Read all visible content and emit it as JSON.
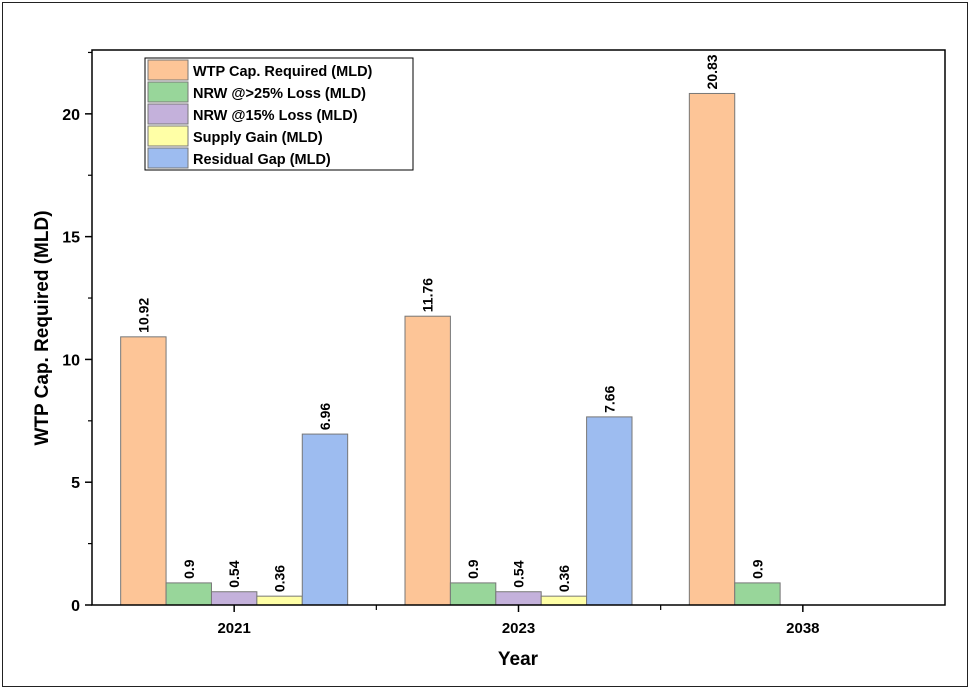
{
  "chart_data": {
    "type": "bar",
    "title": "",
    "xlabel": "Year",
    "ylabel": "WTP Cap. Required (MLD)",
    "categories": [
      "2021",
      "2023",
      "2038"
    ],
    "ylim": [
      0,
      22.6
    ],
    "yticks": [
      0,
      5,
      10,
      15,
      20
    ],
    "grid": false,
    "legend_position": "top-left",
    "series": [
      {
        "name": "WTP Cap. Required (MLD)",
        "color": "#FDC597",
        "values": [
          10.92,
          11.76,
          20.83
        ],
        "labels": [
          "10.92",
          "11.76",
          "20.83"
        ]
      },
      {
        "name": "NRW @>25% Loss (MLD)",
        "color": "#98D69A",
        "values": [
          0.9,
          0.9,
          0.9
        ],
        "labels": [
          "0.9",
          "0.9",
          "0.9"
        ]
      },
      {
        "name": "NRW @15% Loss (MLD)",
        "color": "#C4B1DB",
        "values": [
          0.54,
          0.54,
          null
        ],
        "labels": [
          "0.54",
          "0.54",
          null
        ]
      },
      {
        "name": "Supply Gain (MLD)",
        "color": "#FFFFA6",
        "values": [
          0.36,
          0.36,
          null
        ],
        "labels": [
          "0.36",
          "0.36",
          null
        ]
      },
      {
        "name": "Residual Gap (MLD)",
        "color": "#9DBCF0",
        "values": [
          6.96,
          7.66,
          null
        ],
        "labels": [
          "6.96",
          "7.66",
          null
        ]
      }
    ]
  }
}
